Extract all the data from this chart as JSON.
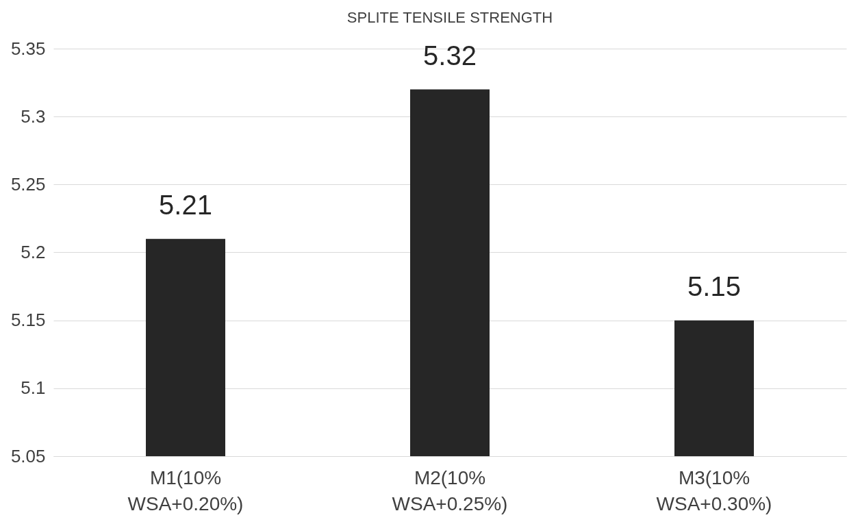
{
  "chart_data": {
    "type": "bar",
    "title": "SPLITE TENSILE STRENGTH",
    "categories": [
      "M1(10% WSA+0.20%)",
      "M2(10% WSA+0.25%)",
      "M3(10% WSA+0.30%)"
    ],
    "values": [
      5.21,
      5.32,
      5.15
    ],
    "color": "#262626",
    "ylim": [
      5.05,
      5.35
    ],
    "yticks": [
      5.05,
      5.1,
      5.15,
      5.2,
      5.25,
      5.3,
      5.35
    ],
    "grid": "y",
    "data_labels": true
  }
}
